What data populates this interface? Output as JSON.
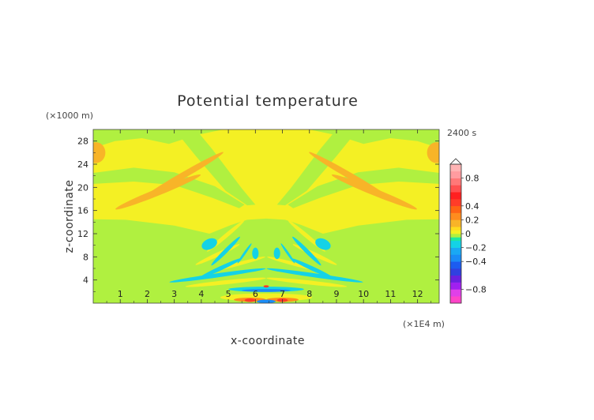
{
  "chart_data": {
    "type": "heatmap",
    "title": "Potential temperature",
    "xlabel": "x-coordinate",
    "ylabel": "z-coordinate",
    "x_unit": "(×1E4 m)",
    "y_unit": "(×1000 m)",
    "time_label": "2400 s",
    "xlim": [
      0,
      12.8
    ],
    "ylim": [
      0,
      30
    ],
    "x_ticks": [
      1,
      2,
      3,
      4,
      5,
      6,
      7,
      8,
      9,
      10,
      11,
      12
    ],
    "y_ticks": [
      4,
      8,
      12,
      16,
      20,
      24,
      28
    ],
    "colorbar": {
      "range": [
        -1.0,
        1.0
      ],
      "tick_values": [
        0.8,
        0.4,
        0.2,
        0,
        -0.2,
        -0.4,
        -0.8
      ],
      "tick_labels": [
        "0.8",
        "0.4",
        "0.2",
        "0",
        "−0.2",
        "−0.4",
        "−0.8"
      ],
      "levels": [
        {
          "from": -1.0,
          "to": -0.9,
          "color": "#ff44c8"
        },
        {
          "from": -0.9,
          "to": -0.8,
          "color": "#e040e8"
        },
        {
          "from": -0.8,
          "to": -0.7,
          "color": "#a020f0"
        },
        {
          "from": -0.7,
          "to": -0.6,
          "color": "#6a20e0"
        },
        {
          "from": -0.6,
          "to": -0.5,
          "color": "#3040e0"
        },
        {
          "from": -0.5,
          "to": -0.4,
          "color": "#1c5cf0"
        },
        {
          "from": -0.4,
          "to": -0.3,
          "color": "#1a8cf6"
        },
        {
          "from": -0.3,
          "to": -0.2,
          "color": "#1aa8f4"
        },
        {
          "from": -0.2,
          "to": -0.1,
          "color": "#14d2e6"
        },
        {
          "from": -0.1,
          "to": -0.05,
          "color": "#1ee8a0"
        },
        {
          "from": -0.05,
          "to": 0.0,
          "color": "#b0f040"
        },
        {
          "from": 0.0,
          "to": 0.05,
          "color": "#f4f024"
        },
        {
          "from": 0.05,
          "to": 0.1,
          "color": "#ffdc1e"
        },
        {
          "from": 0.1,
          "to": 0.2,
          "color": "#f8b428"
        },
        {
          "from": 0.2,
          "to": 0.3,
          "color": "#ff8c1e"
        },
        {
          "from": 0.3,
          "to": 0.4,
          "color": "#ff6414"
        },
        {
          "from": 0.4,
          "to": 0.5,
          "color": "#ff3c28"
        },
        {
          "from": 0.5,
          "to": 0.6,
          "color": "#ff2020"
        },
        {
          "from": 0.6,
          "to": 0.7,
          "color": "#ff5050"
        },
        {
          "from": 0.7,
          "to": 0.8,
          "color": "#ff7878"
        },
        {
          "from": 0.8,
          "to": 0.9,
          "color": "#ff9ca0"
        },
        {
          "from": 0.9,
          "to": 1.0,
          "color": "#ffb4b4"
        }
      ]
    },
    "background_color": "#b0f040",
    "regions": [
      {
        "name": "upper-yellow",
        "shape": "polygon",
        "color": "#f4f024",
        "points": [
          [
            0,
            14.5
          ],
          [
            1.2,
            14.4
          ],
          [
            3.0,
            13.4
          ],
          [
            4.3,
            12.0
          ],
          [
            5.1,
            13.5
          ],
          [
            5.7,
            14.4
          ],
          [
            6.4,
            14.6
          ],
          [
            7.1,
            14.4
          ],
          [
            7.7,
            13.5
          ],
          [
            8.5,
            12.0
          ],
          [
            9.8,
            13.4
          ],
          [
            11.6,
            14.4
          ],
          [
            12.8,
            14.5
          ],
          [
            12.8,
            26.8
          ],
          [
            12.0,
            28.0
          ],
          [
            11.0,
            28.5
          ],
          [
            10.0,
            27.5
          ],
          [
            9.0,
            29.0
          ],
          [
            8.0,
            30.0
          ],
          [
            4.8,
            30.0
          ],
          [
            3.8,
            29.0
          ],
          [
            2.8,
            27.5
          ],
          [
            1.8,
            28.5
          ],
          [
            0.8,
            28.0
          ],
          [
            0,
            26.8
          ]
        ]
      },
      {
        "name": "green-band-left",
        "shape": "polygon",
        "color": "#b0f040",
        "points": [
          [
            0.0,
            22.5
          ],
          [
            1.5,
            23.4
          ],
          [
            3.0,
            22.6
          ],
          [
            4.5,
            20.2
          ],
          [
            5.6,
            17.0
          ],
          [
            5.4,
            16.4
          ],
          [
            4.4,
            18.2
          ],
          [
            3.0,
            20.4
          ],
          [
            1.5,
            21.0
          ],
          [
            0.0,
            20.6
          ]
        ]
      },
      {
        "name": "green-band-right",
        "shape": "polygon",
        "color": "#b0f040",
        "points": [
          [
            12.8,
            22.5
          ],
          [
            11.3,
            23.4
          ],
          [
            9.8,
            22.6
          ],
          [
            8.3,
            20.2
          ],
          [
            7.2,
            17.0
          ],
          [
            7.4,
            16.4
          ],
          [
            8.4,
            18.2
          ],
          [
            9.8,
            20.4
          ],
          [
            11.3,
            21.0
          ],
          [
            12.8,
            20.6
          ]
        ]
      },
      {
        "name": "green-arm-left",
        "shape": "polygon",
        "color": "#b0f040",
        "points": [
          [
            3.0,
            30.0
          ],
          [
            3.8,
            30.0
          ],
          [
            4.4,
            26.6
          ],
          [
            5.5,
            19.8
          ],
          [
            6.0,
            17.0
          ],
          [
            5.7,
            16.9
          ],
          [
            4.9,
            19.4
          ],
          [
            3.8,
            25.4
          ]
        ]
      },
      {
        "name": "green-arm-right",
        "shape": "polygon",
        "color": "#b0f040",
        "points": [
          [
            9.8,
            30.0
          ],
          [
            9.0,
            30.0
          ],
          [
            8.4,
            26.6
          ],
          [
            7.3,
            19.8
          ],
          [
            6.8,
            17.0
          ],
          [
            7.1,
            16.9
          ],
          [
            7.9,
            19.4
          ],
          [
            9.0,
            25.4
          ]
        ]
      },
      {
        "name": "orange-left-upper",
        "shape": "ellipse",
        "color": "#f8b428",
        "cx": 3.3,
        "cy": 22.0,
        "rx": 1.75,
        "ry": 0.55,
        "rotate": -30
      },
      {
        "name": "orange-left-lower",
        "shape": "ellipse",
        "color": "#f8b428",
        "cx": 2.4,
        "cy": 19.2,
        "rx": 1.7,
        "ry": 0.6,
        "rotate": -22
      },
      {
        "name": "orange-right-upper",
        "shape": "ellipse",
        "color": "#f8b428",
        "cx": 9.5,
        "cy": 22.0,
        "rx": 1.75,
        "ry": 0.55,
        "rotate": 30
      },
      {
        "name": "orange-right-lower",
        "shape": "ellipse",
        "color": "#f8b428",
        "cx": 10.4,
        "cy": 19.2,
        "rx": 1.7,
        "ry": 0.6,
        "rotate": 22
      },
      {
        "name": "orange-edge-left",
        "shape": "ellipse",
        "color": "#f8b428",
        "cx": 0.1,
        "cy": 26.0,
        "rx": 0.35,
        "ry": 1.8,
        "rotate": 0
      },
      {
        "name": "orange-edge-right",
        "shape": "ellipse",
        "color": "#f8b428",
        "cx": 12.7,
        "cy": 26.0,
        "rx": 0.35,
        "ry": 1.8,
        "rotate": 0
      },
      {
        "name": "yellow-fan-1",
        "shape": "ellipse",
        "color": "#f4f024",
        "cx": 4.9,
        "cy": 11.6,
        "rx": 0.9,
        "ry": 0.35,
        "rotate": -40
      },
      {
        "name": "yellow-fan-2",
        "shape": "ellipse",
        "color": "#f4f024",
        "cx": 7.9,
        "cy": 11.6,
        "rx": 0.9,
        "ry": 0.35,
        "rotate": 40
      },
      {
        "name": "yellow-fan-3",
        "shape": "ellipse",
        "color": "#f4f024",
        "cx": 4.6,
        "cy": 8.4,
        "rx": 0.9,
        "ry": 0.35,
        "rotate": -25
      },
      {
        "name": "yellow-fan-4",
        "shape": "ellipse",
        "color": "#f4f024",
        "cx": 8.2,
        "cy": 8.4,
        "rx": 0.9,
        "ry": 0.35,
        "rotate": 25
      },
      {
        "name": "yellow-fan-5",
        "shape": "ellipse",
        "color": "#f4f024",
        "cx": 5.4,
        "cy": 6.8,
        "rx": 1.0,
        "ry": 0.3,
        "rotate": -15
      },
      {
        "name": "yellow-fan-6",
        "shape": "ellipse",
        "color": "#f4f024",
        "cx": 7.4,
        "cy": 6.8,
        "rx": 1.0,
        "ry": 0.3,
        "rotate": 15
      },
      {
        "name": "yellow-fan-7",
        "shape": "ellipse",
        "color": "#f4f024",
        "cx": 4.9,
        "cy": 3.6,
        "rx": 1.5,
        "ry": 0.35,
        "rotate": -6
      },
      {
        "name": "yellow-fan-8",
        "shape": "ellipse",
        "color": "#f4f024",
        "cx": 7.9,
        "cy": 3.6,
        "rx": 1.5,
        "ry": 0.35,
        "rotate": 6
      },
      {
        "name": "cyan-1",
        "shape": "ellipse",
        "color": "#14d2e6",
        "cx": 4.3,
        "cy": 10.2,
        "rx": 0.3,
        "ry": 0.9,
        "rotate": -25
      },
      {
        "name": "cyan-2",
        "shape": "ellipse",
        "color": "#14d2e6",
        "cx": 8.5,
        "cy": 10.2,
        "rx": 0.3,
        "ry": 0.9,
        "rotate": 25
      },
      {
        "name": "cyan-3",
        "shape": "ellipse",
        "color": "#14d2e6",
        "cx": 4.9,
        "cy": 9.0,
        "rx": 0.75,
        "ry": 0.35,
        "rotate": -45
      },
      {
        "name": "cyan-4",
        "shape": "ellipse",
        "color": "#14d2e6",
        "cx": 7.9,
        "cy": 9.0,
        "rx": 0.75,
        "ry": 0.35,
        "rotate": 45
      },
      {
        "name": "cyan-5",
        "shape": "ellipse",
        "color": "#14d2e6",
        "cx": 5.6,
        "cy": 8.6,
        "rx": 0.45,
        "ry": 0.2,
        "rotate": -55
      },
      {
        "name": "cyan-6",
        "shape": "ellipse",
        "color": "#14d2e6",
        "cx": 7.2,
        "cy": 8.6,
        "rx": 0.45,
        "ry": 0.2,
        "rotate": 55
      },
      {
        "name": "cyan-7",
        "shape": "ellipse",
        "color": "#14d2e6",
        "cx": 6.0,
        "cy": 8.6,
        "rx": 0.12,
        "ry": 1.0,
        "rotate": 0
      },
      {
        "name": "cyan-8",
        "shape": "ellipse",
        "color": "#14d2e6",
        "cx": 6.8,
        "cy": 8.6,
        "rx": 0.12,
        "ry": 1.0,
        "rotate": 0
      },
      {
        "name": "cyan-9",
        "shape": "ellipse",
        "color": "#14d2e6",
        "cx": 4.7,
        "cy": 6.0,
        "rx": 0.9,
        "ry": 0.35,
        "rotate": -25
      },
      {
        "name": "cyan-10",
        "shape": "ellipse",
        "color": "#14d2e6",
        "cx": 8.1,
        "cy": 6.0,
        "rx": 0.9,
        "ry": 0.35,
        "rotate": 25
      },
      {
        "name": "cyan-11",
        "shape": "ellipse",
        "color": "#14d2e6",
        "cx": 4.6,
        "cy": 4.8,
        "rx": 1.8,
        "ry": 0.35,
        "rotate": -8
      },
      {
        "name": "cyan-12",
        "shape": "ellipse",
        "color": "#14d2e6",
        "cx": 8.2,
        "cy": 4.8,
        "rx": 1.8,
        "ry": 0.35,
        "rotate": 8
      },
      {
        "name": "cyan-13",
        "shape": "ellipse",
        "color": "#14d2e6",
        "cx": 6.4,
        "cy": 2.4,
        "rx": 1.4,
        "ry": 0.45,
        "rotate": 0
      },
      {
        "name": "blue-core",
        "shape": "ellipse",
        "color": "#1a8cf6",
        "cx": 6.4,
        "cy": 2.2,
        "rx": 0.9,
        "ry": 0.25,
        "rotate": 0
      },
      {
        "name": "blue-core-2",
        "shape": "ellipse",
        "color": "#3040e0",
        "cx": 6.4,
        "cy": 0.5,
        "rx": 0.2,
        "ry": 0.35,
        "rotate": 0
      },
      {
        "name": "yellow-base",
        "shape": "ellipse",
        "color": "#f4f024",
        "cx": 6.4,
        "cy": 1.0,
        "rx": 1.7,
        "ry": 0.7,
        "rotate": 0
      },
      {
        "name": "orange-base-left",
        "shape": "ellipse",
        "color": "#ff8c1e",
        "cx": 5.8,
        "cy": 0.6,
        "rx": 0.6,
        "ry": 0.35,
        "rotate": 0
      },
      {
        "name": "orange-base-right",
        "shape": "ellipse",
        "color": "#ff8c1e",
        "cx": 7.0,
        "cy": 0.6,
        "rx": 0.6,
        "ry": 0.35,
        "rotate": 0
      },
      {
        "name": "red-base-left",
        "shape": "ellipse",
        "color": "#ff3c28",
        "cx": 5.8,
        "cy": 0.5,
        "rx": 0.2,
        "ry": 0.3,
        "rotate": 0
      },
      {
        "name": "red-base-right",
        "shape": "ellipse",
        "color": "#ff3c28",
        "cx": 7.0,
        "cy": 0.5,
        "rx": 0.2,
        "ry": 0.3,
        "rotate": 0
      },
      {
        "name": "red-top",
        "shape": "ellipse",
        "color": "#ff3c28",
        "cx": 6.4,
        "cy": 2.9,
        "rx": 0.1,
        "ry": 0.2,
        "rotate": 0
      },
      {
        "name": "blue-core-3",
        "shape": "ellipse",
        "color": "#1a8cf6",
        "cx": 6.4,
        "cy": 0.3,
        "rx": 0.35,
        "ry": 0.3,
        "rotate": 0
      }
    ]
  }
}
